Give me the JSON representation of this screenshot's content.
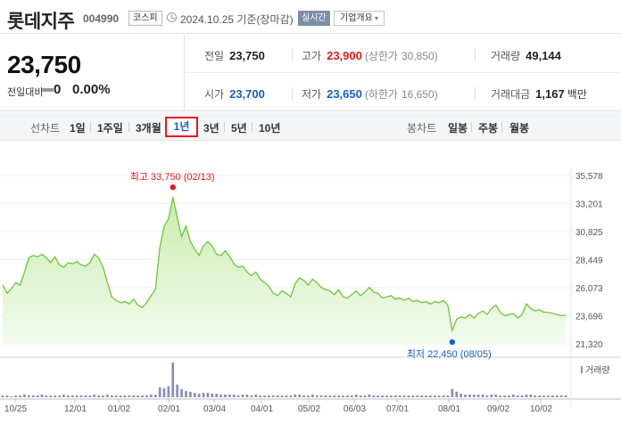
{
  "header": {
    "name": "롯데지주",
    "code": "004990",
    "market": "코스피",
    "date": "2024.10.25",
    "basis": "기준(장마감)",
    "realtime": "실시간",
    "overview": "기업개요",
    "overview_chevron": "▾"
  },
  "price": {
    "current": "23,750",
    "change_label": "전일대비",
    "change": "0",
    "change_pct": "0.00%"
  },
  "stats": {
    "prev_close_label": "전일",
    "prev_close": "23,750",
    "high_label": "고가",
    "high": "23,900",
    "upper_limit_label": "(상한가",
    "upper_limit": "30,850)",
    "volume_label": "거래량",
    "volume": "49,144",
    "open_label": "시가",
    "open": "23,700",
    "low_label": "저가",
    "low": "23,650",
    "lower_limit_label": "(하한가",
    "lower_limit": "16,650)",
    "amount_label": "거래대금",
    "amount": "1,167",
    "amount_unit": "백만"
  },
  "toolbar": {
    "line_chart_label": "선차트",
    "periods": [
      "1일",
      "1주일",
      "3개월",
      "1년",
      "3년",
      "5년",
      "10년"
    ],
    "selected_period": "1년",
    "candle_label": "봉차트",
    "candles": [
      "일봉",
      "주봉",
      "월봉"
    ]
  },
  "colors": {
    "line": "#6cc63c",
    "fill": "#d8f2c4",
    "high_dot": "#e8181c",
    "low_dot": "#1560c7",
    "volume": "#8a8fb8"
  },
  "chart_data": {
    "type": "area",
    "y_ticks": [
      "35,578",
      "33,201",
      "30,825",
      "28,449",
      "26,073",
      "23,696",
      "21,320"
    ],
    "ylim": [
      21320,
      35578
    ],
    "x_ticks": [
      "10/25",
      "12/01",
      "01/02",
      "02/01",
      "03/04",
      "04/01",
      "05/02",
      "06/03",
      "07/01",
      "08/01",
      "09/02",
      "10/02"
    ],
    "high_annotation": "최고 33,750 (02/13)",
    "low_annotation": "최저 22,450 (08/05)",
    "volume_legend": "거래량",
    "series": [
      {
        "values": [
          26300,
          25600,
          26000,
          26500,
          26300,
          27400,
          28600,
          28800,
          28700,
          28900,
          28600,
          28200,
          28700,
          28000,
          27800,
          28200,
          28100,
          28300,
          28000,
          27900,
          28200,
          28900,
          28600,
          27800,
          26500,
          25300,
          25000,
          24800,
          24900,
          24700,
          25100,
          24600,
          24400,
          24800,
          25400,
          25900,
          29500,
          31300,
          31900,
          33750,
          32000,
          30400,
          31300,
          30000,
          29300,
          28800,
          29600,
          30000,
          29600,
          28900,
          28800,
          29200,
          28700,
          28100,
          27800,
          27900,
          27400,
          27100,
          27400,
          26800,
          26500,
          26200,
          25600,
          25400,
          25800,
          25600,
          25300,
          26400,
          26900,
          26700,
          26300,
          26800,
          26500,
          26100,
          25900,
          25800,
          25500,
          25900,
          25300,
          25200,
          25500,
          25800,
          25400,
          25700,
          26100,
          25700,
          25600,
          25200,
          25300,
          25400,
          25100,
          25200,
          25000,
          25200,
          24900,
          25000,
          24800,
          24900,
          24700,
          24900,
          24800,
          25000,
          24600,
          22450,
          23400,
          23600,
          23500,
          23800,
          23500,
          23900,
          24100,
          23800,
          24300,
          24600,
          24000,
          23700,
          23800,
          23900,
          23500,
          23800,
          24700,
          24300,
          24100,
          24200,
          24000,
          24000,
          23900,
          23800,
          23700,
          23750
        ],
        "volumes": [
          2,
          2,
          1,
          2,
          2,
          3,
          2,
          2,
          2,
          3,
          2,
          2,
          2,
          2,
          3,
          2,
          2,
          2,
          2,
          2,
          2,
          3,
          2,
          2,
          3,
          2,
          2,
          2,
          2,
          2,
          2,
          2,
          2,
          2,
          3,
          3,
          11,
          10,
          12,
          38,
          14,
          9,
          7,
          6,
          5,
          4,
          5,
          5,
          4,
          4,
          3,
          3,
          3,
          3,
          2,
          3,
          3,
          2,
          3,
          2,
          2,
          2,
          2,
          2,
          2,
          2,
          2,
          3,
          3,
          2,
          2,
          3,
          2,
          2,
          2,
          2,
          2,
          2,
          2,
          2,
          2,
          3,
          2,
          2,
          3,
          2,
          2,
          2,
          2,
          2,
          2,
          2,
          2,
          2,
          2,
          2,
          2,
          2,
          2,
          2,
          2,
          2,
          2,
          9,
          6,
          4,
          3,
          3,
          3,
          3,
          3,
          2,
          3,
          3,
          2,
          2,
          2,
          3,
          2,
          2,
          3,
          3,
          2,
          2,
          2,
          2,
          2,
          2,
          2,
          2
        ]
      }
    ]
  }
}
